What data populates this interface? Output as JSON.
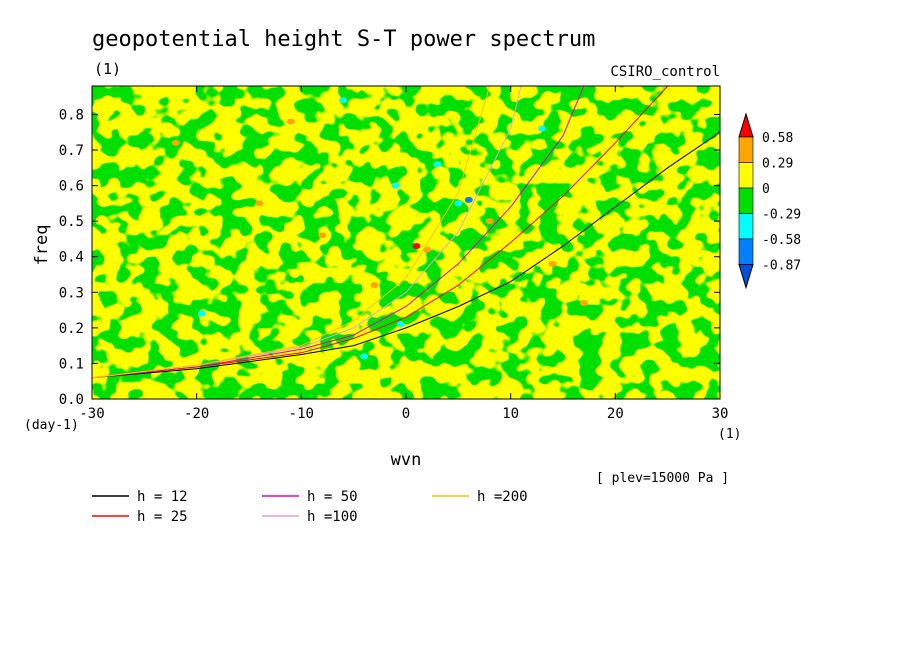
{
  "chart_data": {
    "type": "heatmap",
    "title": "geopotential height S-T power spectrum",
    "units_label": "(1)",
    "run_label": "CSIRO_control",
    "xlabel": "wvn",
    "x_unit_label": "(1)",
    "ylabel": "freq",
    "y_unit_label": "(day-1)",
    "level_label": "[ plev=15000 Pa ]",
    "xlim": [
      -30,
      30
    ],
    "ylim": [
      0,
      0.88
    ],
    "x_ticks": [
      -30,
      -20,
      -10,
      0,
      10,
      20,
      30
    ],
    "x_tick_labels": [
      "-30",
      "-20",
      "-10",
      "0",
      "10",
      "20",
      "30"
    ],
    "y_ticks": [
      0,
      0.1,
      0.2,
      0.3,
      0.4,
      0.5,
      0.6,
      0.7,
      0.8
    ],
    "y_tick_labels": [
      "0.0",
      "0.1",
      "0.2",
      "0.3",
      "0.4",
      "0.5",
      "0.6",
      "0.7",
      "0.8"
    ],
    "colorbar": {
      "labels": [
        "0.58",
        "0.29",
        "0",
        "-0.29",
        "-0.58",
        "-0.87"
      ],
      "colors": [
        "#ff0000",
        "#ffa500",
        "#ffff00",
        "#00e000",
        "#00ffff",
        "#0080ff",
        "#0050e0"
      ]
    },
    "field_colors": {
      "positive": "#ffff00",
      "negative": "#00e000",
      "high": "#ffa500",
      "peak": "#ff0000",
      "low": "#00ffff",
      "lower": "#0080ff"
    },
    "dispersion_curves": [
      {
        "name": "h = 12",
        "color": "#000000",
        "x": [
          -30,
          -20,
          -10,
          -5,
          0,
          5,
          10,
          15,
          20,
          25,
          30
        ],
        "y": [
          0.06,
          0.085,
          0.125,
          0.15,
          0.2,
          0.26,
          0.33,
          0.43,
          0.54,
          0.65,
          0.75
        ]
      },
      {
        "name": "h = 25",
        "color": "#ff0000",
        "x": [
          -30,
          -20,
          -10,
          -5,
          0,
          5,
          10,
          15,
          20,
          25
        ],
        "y": [
          0.06,
          0.09,
          0.13,
          0.17,
          0.23,
          0.32,
          0.44,
          0.57,
          0.72,
          0.88
        ]
      },
      {
        "name": "h = 50",
        "color": "#e000c0",
        "x": [
          -30,
          -20,
          -10,
          -5,
          0,
          5,
          10,
          15,
          17
        ],
        "y": [
          0.06,
          0.09,
          0.14,
          0.18,
          0.26,
          0.38,
          0.54,
          0.74,
          0.88
        ]
      },
      {
        "name": "h =100",
        "color": "#e0a0e0",
        "x": [
          -30,
          -20,
          -10,
          -5,
          0,
          5,
          10,
          11
        ],
        "y": [
          0.06,
          0.095,
          0.145,
          0.2,
          0.3,
          0.47,
          0.76,
          0.88
        ]
      },
      {
        "name": "h =200",
        "color": "#ffc000",
        "x": [
          -30,
          -20,
          -10,
          -5,
          0,
          5,
          8
        ],
        "y": [
          0.06,
          0.095,
          0.15,
          0.22,
          0.34,
          0.58,
          0.88
        ]
      }
    ]
  }
}
